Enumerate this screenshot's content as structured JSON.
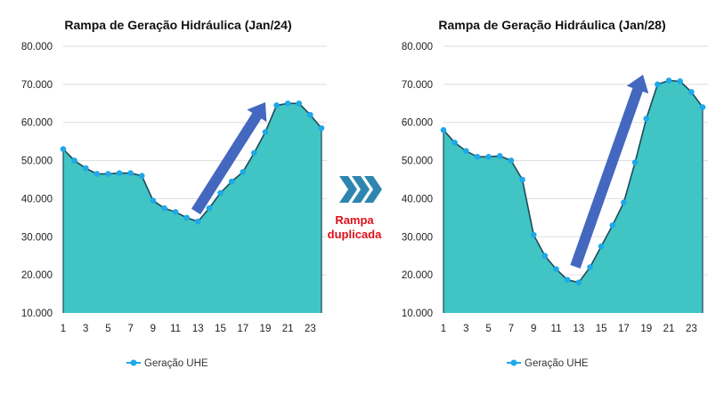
{
  "chart_data": [
    {
      "type": "area",
      "title": "Rampa de Geração Hidráulica (Jan/24)",
      "ylim": [
        10000,
        80000
      ],
      "yticks": [
        "10.000",
        "20.000",
        "30.000",
        "40.000",
        "50.000",
        "60.000",
        "70.000",
        "80.000"
      ],
      "xticks": [
        "1",
        "3",
        "5",
        "7",
        "9",
        "11",
        "13",
        "15",
        "17",
        "19",
        "21",
        "23"
      ],
      "x": [
        1,
        2,
        3,
        4,
        5,
        6,
        7,
        8,
        9,
        10,
        11,
        12,
        13,
        14,
        15,
        16,
        17,
        18,
        19,
        20,
        21,
        22,
        23,
        24
      ],
      "series": [
        {
          "name": "Geração UHE",
          "values": [
            53000,
            50000,
            48000,
            46500,
            46500,
            46700,
            46700,
            46000,
            39500,
            37500,
            36500,
            35000,
            34000,
            37500,
            41500,
            44500,
            47000,
            52000,
            57500,
            64500,
            65000,
            65000,
            62000,
            58500
          ]
        }
      ],
      "legend": "bottom",
      "grid": true
    },
    {
      "type": "area",
      "title": "Rampa de Geração Hidráulica (Jan/28)",
      "ylim": [
        10000,
        80000
      ],
      "yticks": [
        "10.000",
        "20.000",
        "30.000",
        "40.000",
        "50.000",
        "60.000",
        "70.000",
        "80.000"
      ],
      "xticks": [
        "1",
        "3",
        "5",
        "7",
        "9",
        "11",
        "13",
        "15",
        "17",
        "19",
        "21",
        "23"
      ],
      "x": [
        1,
        2,
        3,
        4,
        5,
        6,
        7,
        8,
        9,
        10,
        11,
        12,
        13,
        14,
        15,
        16,
        17,
        18,
        19,
        20,
        21,
        22,
        23,
        24
      ],
      "series": [
        {
          "name": "Geração UHE",
          "values": [
            58000,
            54700,
            52500,
            51000,
            51000,
            51200,
            50000,
            45000,
            30500,
            25000,
            21500,
            18700,
            18000,
            22000,
            27500,
            33000,
            39000,
            49500,
            61000,
            70000,
            71000,
            70800,
            68000,
            64000
          ]
        }
      ],
      "legend": "bottom",
      "grid": true
    }
  ],
  "annotation": {
    "line1": "Rampa",
    "line2": "duplicada"
  },
  "colors": {
    "fill": "#40C4C4",
    "marker": "#1EA8E8",
    "arrow": "#4468C0",
    "chevron": "#2E86B0",
    "text": "#E0101A"
  }
}
